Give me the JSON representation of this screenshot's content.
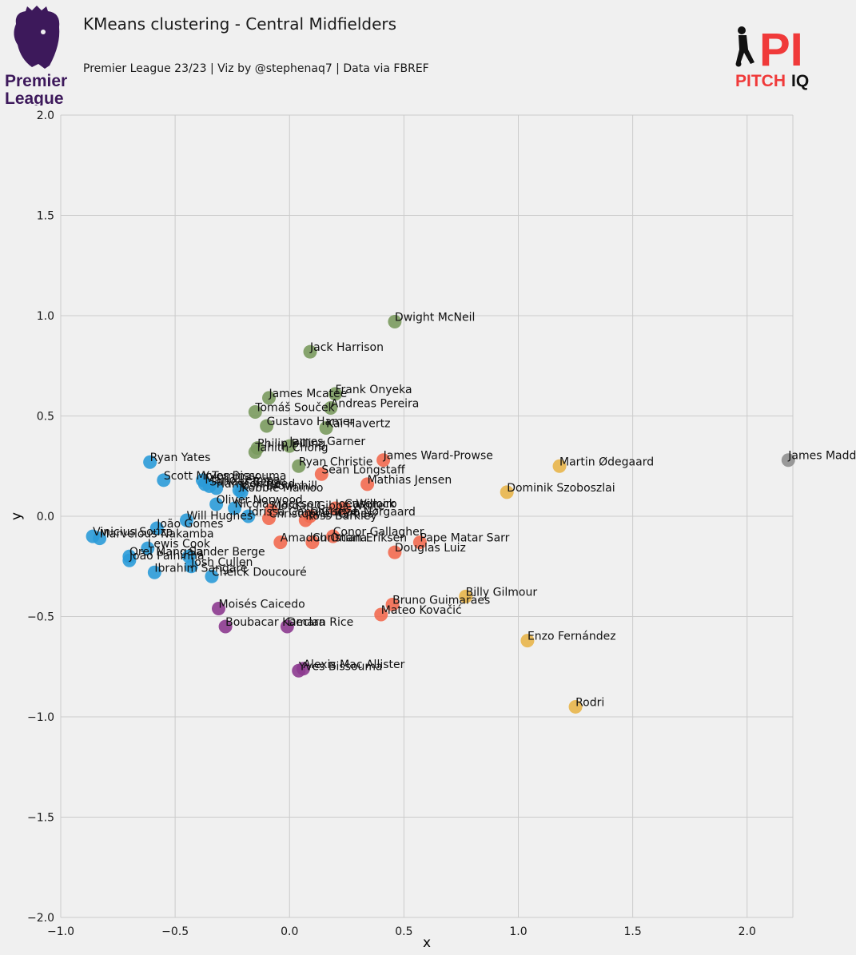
{
  "header": {
    "title": "KMeans clustering - Central Midfielders",
    "subtitle": "Premier League 23/23 | Viz by @stephenaq7 | Data via FBREF",
    "left_logo": {
      "icon": "premier-league-lion-logo",
      "line1": "Premier",
      "line2": "League",
      "color": "#3d195b"
    },
    "right_logo": {
      "icon": "pitch-iq-logo",
      "text_a": "PITCH",
      "text_b": "IQ",
      "mark": "PI",
      "accent": "#f03a3a"
    }
  },
  "chart_data": {
    "type": "scatter",
    "title": "KMeans clustering - Central Midfielders",
    "xlabel": "x",
    "ylabel": "y",
    "xlim": [
      -1.0,
      2.2
    ],
    "ylim": [
      -2.0,
      2.0
    ],
    "xticks": [
      -1.0,
      -0.5,
      0.0,
      0.5,
      1.0,
      1.5,
      2.0
    ],
    "yticks": [
      -2.0,
      -1.5,
      -1.0,
      -0.5,
      0.0,
      0.5,
      1.0,
      1.5,
      2.0
    ],
    "grid": true,
    "cluster_colors": [
      "#2b9bd8",
      "#7a9a5e",
      "#f26a50",
      "#e8b54a",
      "#8c3a8f",
      "#8f8f8f"
    ],
    "points": [
      {
        "label": "Dwight McNeil",
        "x": 0.46,
        "y": 0.97,
        "cluster": 1
      },
      {
        "label": "Jack Harrison",
        "x": 0.09,
        "y": 0.82,
        "cluster": 1
      },
      {
        "label": "Frank Onyeka",
        "x": 0.2,
        "y": 0.61,
        "cluster": 1
      },
      {
        "label": "James Mcatee",
        "x": -0.09,
        "y": 0.59,
        "cluster": 1
      },
      {
        "label": "Andreas Pereira",
        "x": 0.18,
        "y": 0.54,
        "cluster": 1
      },
      {
        "label": "Tomáš Souček",
        "x": -0.15,
        "y": 0.52,
        "cluster": 1
      },
      {
        "label": "Gustavo Hamer",
        "x": -0.1,
        "y": 0.45,
        "cluster": 1
      },
      {
        "label": "Kai Havertz",
        "x": 0.16,
        "y": 0.44,
        "cluster": 1
      },
      {
        "label": "James Garner",
        "x": 0.0,
        "y": 0.35,
        "cluster": 1
      },
      {
        "label": "Philip Billing",
        "x": -0.14,
        "y": 0.34,
        "cluster": 1
      },
      {
        "label": "Tahith Chong",
        "x": -0.15,
        "y": 0.32,
        "cluster": 1
      },
      {
        "label": "Ryan Christie",
        "x": 0.04,
        "y": 0.25,
        "cluster": 1
      },
      {
        "label": "James Ward-Prowse",
        "x": 0.41,
        "y": 0.28,
        "cluster": 2
      },
      {
        "label": "Sean Longstaff",
        "x": 0.14,
        "y": 0.21,
        "cluster": 2
      },
      {
        "label": "Mathias Jensen",
        "x": 0.34,
        "y": 0.16,
        "cluster": 2
      },
      {
        "label": "Casemiro",
        "x": 0.24,
        "y": 0.04,
        "cluster": 2
      },
      {
        "label": "Joe Willock",
        "x": 0.2,
        "y": 0.04,
        "cluster": 2
      },
      {
        "label": "Morgan Gibbs-White",
        "x": -0.08,
        "y": 0.03,
        "cluster": 2
      },
      {
        "label": "Christian Nørgaard",
        "x": 0.09,
        "y": 0.0,
        "cluster": 2
      },
      {
        "label": "Christopher Gimes",
        "x": -0.09,
        "y": -0.01,
        "cluster": 2
      },
      {
        "label": "Ross Barkley",
        "x": 0.07,
        "y": -0.02,
        "cluster": 2
      },
      {
        "label": "Conor Gallagher",
        "x": 0.19,
        "y": -0.1,
        "cluster": 2
      },
      {
        "label": "Amadou Onana",
        "x": -0.04,
        "y": -0.13,
        "cluster": 2
      },
      {
        "label": "Christian Eriksen",
        "x": 0.1,
        "y": -0.13,
        "cluster": 2
      },
      {
        "label": "Pape Matar Sarr",
        "x": 0.57,
        "y": -0.13,
        "cluster": 2
      },
      {
        "label": "Douglas Luiz",
        "x": 0.46,
        "y": -0.18,
        "cluster": 2
      },
      {
        "label": "Bruno Guimarães",
        "x": 0.45,
        "y": -0.44,
        "cluster": 2
      },
      {
        "label": "Mateo Kovačić",
        "x": 0.4,
        "y": -0.49,
        "cluster": 2
      },
      {
        "label": "Martin Ødegaard",
        "x": 1.18,
        "y": 0.25,
        "cluster": 3
      },
      {
        "label": "Dominik Szoboszlai",
        "x": 0.95,
        "y": 0.12,
        "cluster": 3
      },
      {
        "label": "Billy Gilmour",
        "x": 0.77,
        "y": -0.4,
        "cluster": 3
      },
      {
        "label": "Enzo Fernández",
        "x": 1.04,
        "y": -0.62,
        "cluster": 3
      },
      {
        "label": "Rodri",
        "x": 1.25,
        "y": -0.95,
        "cluster": 3
      },
      {
        "label": "James Maddison",
        "x": 2.18,
        "y": 0.28,
        "cluster": 5
      },
      {
        "label": "Ryan Yates",
        "x": -0.61,
        "y": 0.27,
        "cluster": 0
      },
      {
        "label": "Scott McTominay",
        "x": -0.55,
        "y": 0.18,
        "cluster": 0
      },
      {
        "label": "Yves Bissouma",
        "x": -0.38,
        "y": 0.18,
        "cluster": 0
      },
      {
        "label": "Mario Lemina",
        "x": -0.37,
        "y": 0.16,
        "cluster": 0
      },
      {
        "label": "Sander Berge",
        "x": -0.35,
        "y": 0.15,
        "cluster": 0
      },
      {
        "label": "Harrison Reed",
        "x": -0.32,
        "y": 0.14,
        "cluster": 0
      },
      {
        "label": "Josh Brownhill",
        "x": -0.22,
        "y": 0.13,
        "cluster": 0
      },
      {
        "label": "Kobbie Mainoo",
        "x": -0.21,
        "y": 0.12,
        "cluster": 0
      },
      {
        "label": "Oliver Norwood",
        "x": -0.32,
        "y": 0.06,
        "cluster": 0
      },
      {
        "label": "Nicolas Jackson",
        "x": -0.24,
        "y": 0.04,
        "cluster": 0
      },
      {
        "label": "Idrissa Gana Gueye",
        "x": -0.18,
        "y": 0.0,
        "cluster": 0
      },
      {
        "label": "Will Hughes",
        "x": -0.45,
        "y": -0.02,
        "cluster": 0
      },
      {
        "label": "João Gomes",
        "x": -0.58,
        "y": -0.06,
        "cluster": 0
      },
      {
        "label": "Vinicius Souza",
        "x": -0.86,
        "y": -0.1,
        "cluster": 0
      },
      {
        "label": "Marvelous Nakamba",
        "x": -0.83,
        "y": -0.11,
        "cluster": 0
      },
      {
        "label": "Lewis Cook",
        "x": -0.62,
        "y": -0.16,
        "cluster": 0
      },
      {
        "label": "Orel Mangala",
        "x": -0.7,
        "y": -0.2,
        "cluster": 0
      },
      {
        "label": "João Palhinha",
        "x": -0.7,
        "y": -0.22,
        "cluster": 0
      },
      {
        "label": "Sander Berge",
        "x": -0.44,
        "y": -0.2,
        "cluster": 0
      },
      {
        "label": "Josh Cullen",
        "x": -0.43,
        "y": -0.25,
        "cluster": 0
      },
      {
        "label": "Ibrahim Sangaré",
        "x": -0.59,
        "y": -0.28,
        "cluster": 0
      },
      {
        "label": "Cheick Doucouré",
        "x": -0.34,
        "y": -0.3,
        "cluster": 0
      },
      {
        "label": "Moisés Caicedo",
        "x": -0.31,
        "y": -0.46,
        "cluster": 4
      },
      {
        "label": "Boubacar Kamara",
        "x": -0.28,
        "y": -0.55,
        "cluster": 4
      },
      {
        "label": "Declan Rice",
        "x": -0.01,
        "y": -0.55,
        "cluster": 4
      },
      {
        "label": "Alexis Mac Allister",
        "x": 0.06,
        "y": -0.76,
        "cluster": 4
      },
      {
        "label": "Yves Bissouma",
        "x": 0.04,
        "y": -0.77,
        "cluster": 4
      }
    ]
  }
}
